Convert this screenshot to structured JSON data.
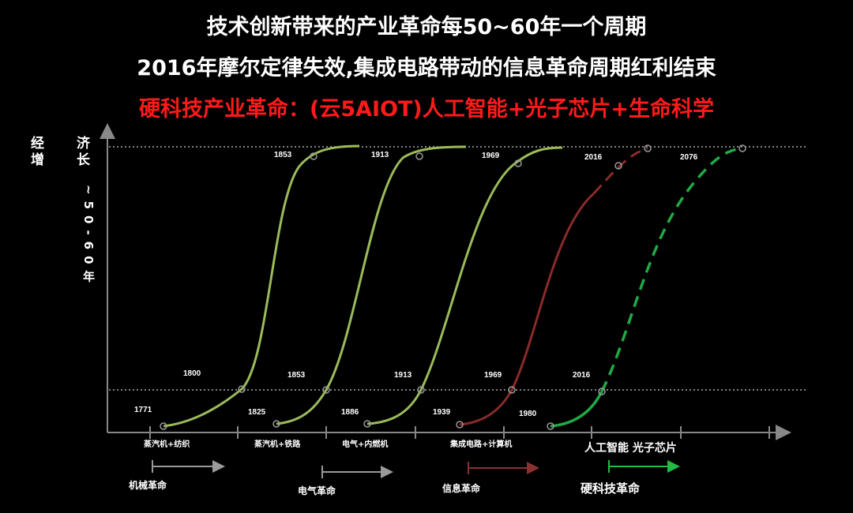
{
  "titles": {
    "line1": "技术创新带来的产业革命每50~60年一个周期",
    "line2": "2016年摩尔定律失效,集成电路带动的信息革命周期红利结束",
    "line3": "硬科技产业革命：(云5AIOT)人工智能+光子芯片+生命科学"
  },
  "y_axis": {
    "label_left_col": "经增",
    "label_right_col": "济长",
    "label_vertical": "~50-60年"
  },
  "colors": {
    "background": "#000000",
    "curve_green": "#9bbb59",
    "curve_red": "#8b2a2a",
    "curve_bright_green": "#1faa45",
    "arrow_gray": "#9a9a9a",
    "arrow_red": "#8b3030",
    "arrow_green": "#22bb44",
    "title_red": "#ff1a1a"
  },
  "chart_data": {
    "type": "line",
    "xlabel": "",
    "ylabel": "经济增长 ~50-60年",
    "grid": "dotted reference lines at low and high levels",
    "series": [
      {
        "name": "蒸汽机+纺织",
        "style": "solid",
        "color": "#9bbb59",
        "points": [
          {
            "label": "1771",
            "level": "low"
          },
          {
            "label": "1800",
            "level": "mid"
          },
          {
            "label": "1853",
            "level": "high"
          }
        ]
      },
      {
        "name": "蒸汽机+铁路",
        "style": "solid",
        "color": "#9bbb59",
        "points": [
          {
            "label": "1825",
            "level": "low"
          },
          {
            "label": "1853",
            "level": "mid"
          },
          {
            "label": "1913",
            "level": "high"
          }
        ]
      },
      {
        "name": "电气+内燃机",
        "style": "solid",
        "color": "#9bbb59",
        "points": [
          {
            "label": "1886",
            "level": "low"
          },
          {
            "label": "1913",
            "level": "mid"
          },
          {
            "label": "1969",
            "level": "high"
          }
        ]
      },
      {
        "name": "集成电路+计算机",
        "style": "solid-then-dashed",
        "color": "#8b2a2a",
        "points": [
          {
            "label": "1939",
            "level": "low"
          },
          {
            "label": "1969",
            "level": "mid"
          },
          {
            "label": "2016",
            "level": "high"
          }
        ]
      },
      {
        "name": "人工智能 光子芯片",
        "style": "dashed",
        "color": "#1faa45",
        "points": [
          {
            "label": "1980",
            "level": "low"
          },
          {
            "label": "2016",
            "level": "mid"
          },
          {
            "label": "2076",
            "level": "high"
          }
        ]
      }
    ],
    "x_categories": [
      "蒸汽机+纺织",
      "蒸汽机+铁路",
      "电气+内燃机",
      "集成电路+计算机",
      "人工智能 光子芯片"
    ],
    "revolutions": [
      "机械革命",
      "电气革命",
      "信息革命",
      "硬科技革命"
    ]
  }
}
